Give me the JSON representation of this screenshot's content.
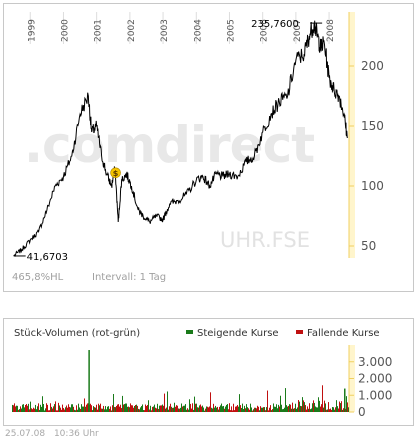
{
  "price_chart": {
    "years": [
      "1999",
      "2000",
      "2001",
      "2002",
      "2003",
      "2004",
      "2005",
      "2006",
      "2007",
      "2008"
    ],
    "high_label": "235,7600",
    "low_label": "41,6703",
    "watermark_brand": ".comdirect",
    "watermark_symbol": "UHR.FSE",
    "info_left": "465,8%HL",
    "info_right": "Intervall: 1 Tag",
    "dividend_marker": "$",
    "colors": {
      "line": "#000000",
      "axis_band": "#fff5cc",
      "axis_line": "#f0d060",
      "axis_text": "#555555",
      "watermark": "#e8e8e8",
      "watermark_accent": "#fde8b4",
      "info_text": "#a0a0a0"
    }
  },
  "volume_chart": {
    "title": "Stück-Volumen (rot-grün)",
    "legend_up": "Steigende Kurse",
    "legend_down": "Fallende Kurse",
    "colors": {
      "up": "#1a7a1a",
      "down": "#c01010"
    }
  },
  "footer": {
    "date": "25.07.08",
    "time": "10:36 Uhr"
  },
  "chart_data": [
    {
      "type": "line",
      "title": "",
      "series": [
        {
          "name": "",
          "x": [
            1998.5,
            1998.75,
            1999.0,
            1999.25,
            1999.5,
            1999.75,
            2000.0,
            2000.25,
            2000.5,
            2000.75,
            2000.85,
            2001.0,
            2001.15,
            2001.3,
            2001.45,
            2001.55,
            2001.65,
            2001.75,
            2001.9,
            2002.05,
            2002.25,
            2002.4,
            2002.6,
            2002.8,
            2003.0,
            2003.2,
            2003.45,
            2003.7,
            2004.0,
            2004.2,
            2004.4,
            2004.6,
            2004.8,
            2005.0,
            2005.25,
            2005.5,
            2005.75,
            2006.0,
            2006.25,
            2006.5,
            2006.75,
            2007.0,
            2007.25,
            2007.4,
            2007.55,
            2007.65,
            2007.75,
            2007.85,
            2008.0,
            2008.15,
            2008.3,
            2008.45,
            2008.55
          ],
          "y": [
            41.7,
            47,
            55,
            62,
            80,
            100,
            108,
            125,
            160,
            175,
            145,
            150,
            125,
            110,
            100,
            115,
            70,
            105,
            110,
            100,
            80,
            75,
            70,
            75,
            72,
            85,
            88,
            93,
            105,
            108,
            100,
            110,
            108,
            110,
            108,
            120,
            125,
            145,
            160,
            170,
            175,
            205,
            210,
            225,
            235.76,
            225,
            215,
            220,
            190,
            180,
            175,
            160,
            140
          ]
        }
      ],
      "ylim": [
        40,
        245
      ],
      "xlim": [
        1998.45,
        2008.6
      ],
      "y_ticks": [
        50,
        100,
        150,
        200
      ],
      "annotations": [
        "235,7600",
        "41,6703",
        "465,8%HL",
        "Intervall: 1 Tag"
      ]
    },
    {
      "type": "bar",
      "title": "Stück-Volumen (rot-grün)",
      "series": [
        {
          "name": "Steigende Kurse"
        },
        {
          "name": "Fallende Kurse"
        }
      ],
      "ylim": [
        0,
        4000
      ],
      "y_ticks": [
        0,
        1000,
        2000,
        3000
      ],
      "y_tick_labels": [
        "0",
        "1.000",
        "2.000",
        "3.000"
      ],
      "peaks": [
        {
          "x": 2000.75,
          "value": 3700,
          "color": "up"
        },
        {
          "x": 2008.45,
          "value": 1400,
          "color": "up"
        }
      ]
    }
  ]
}
